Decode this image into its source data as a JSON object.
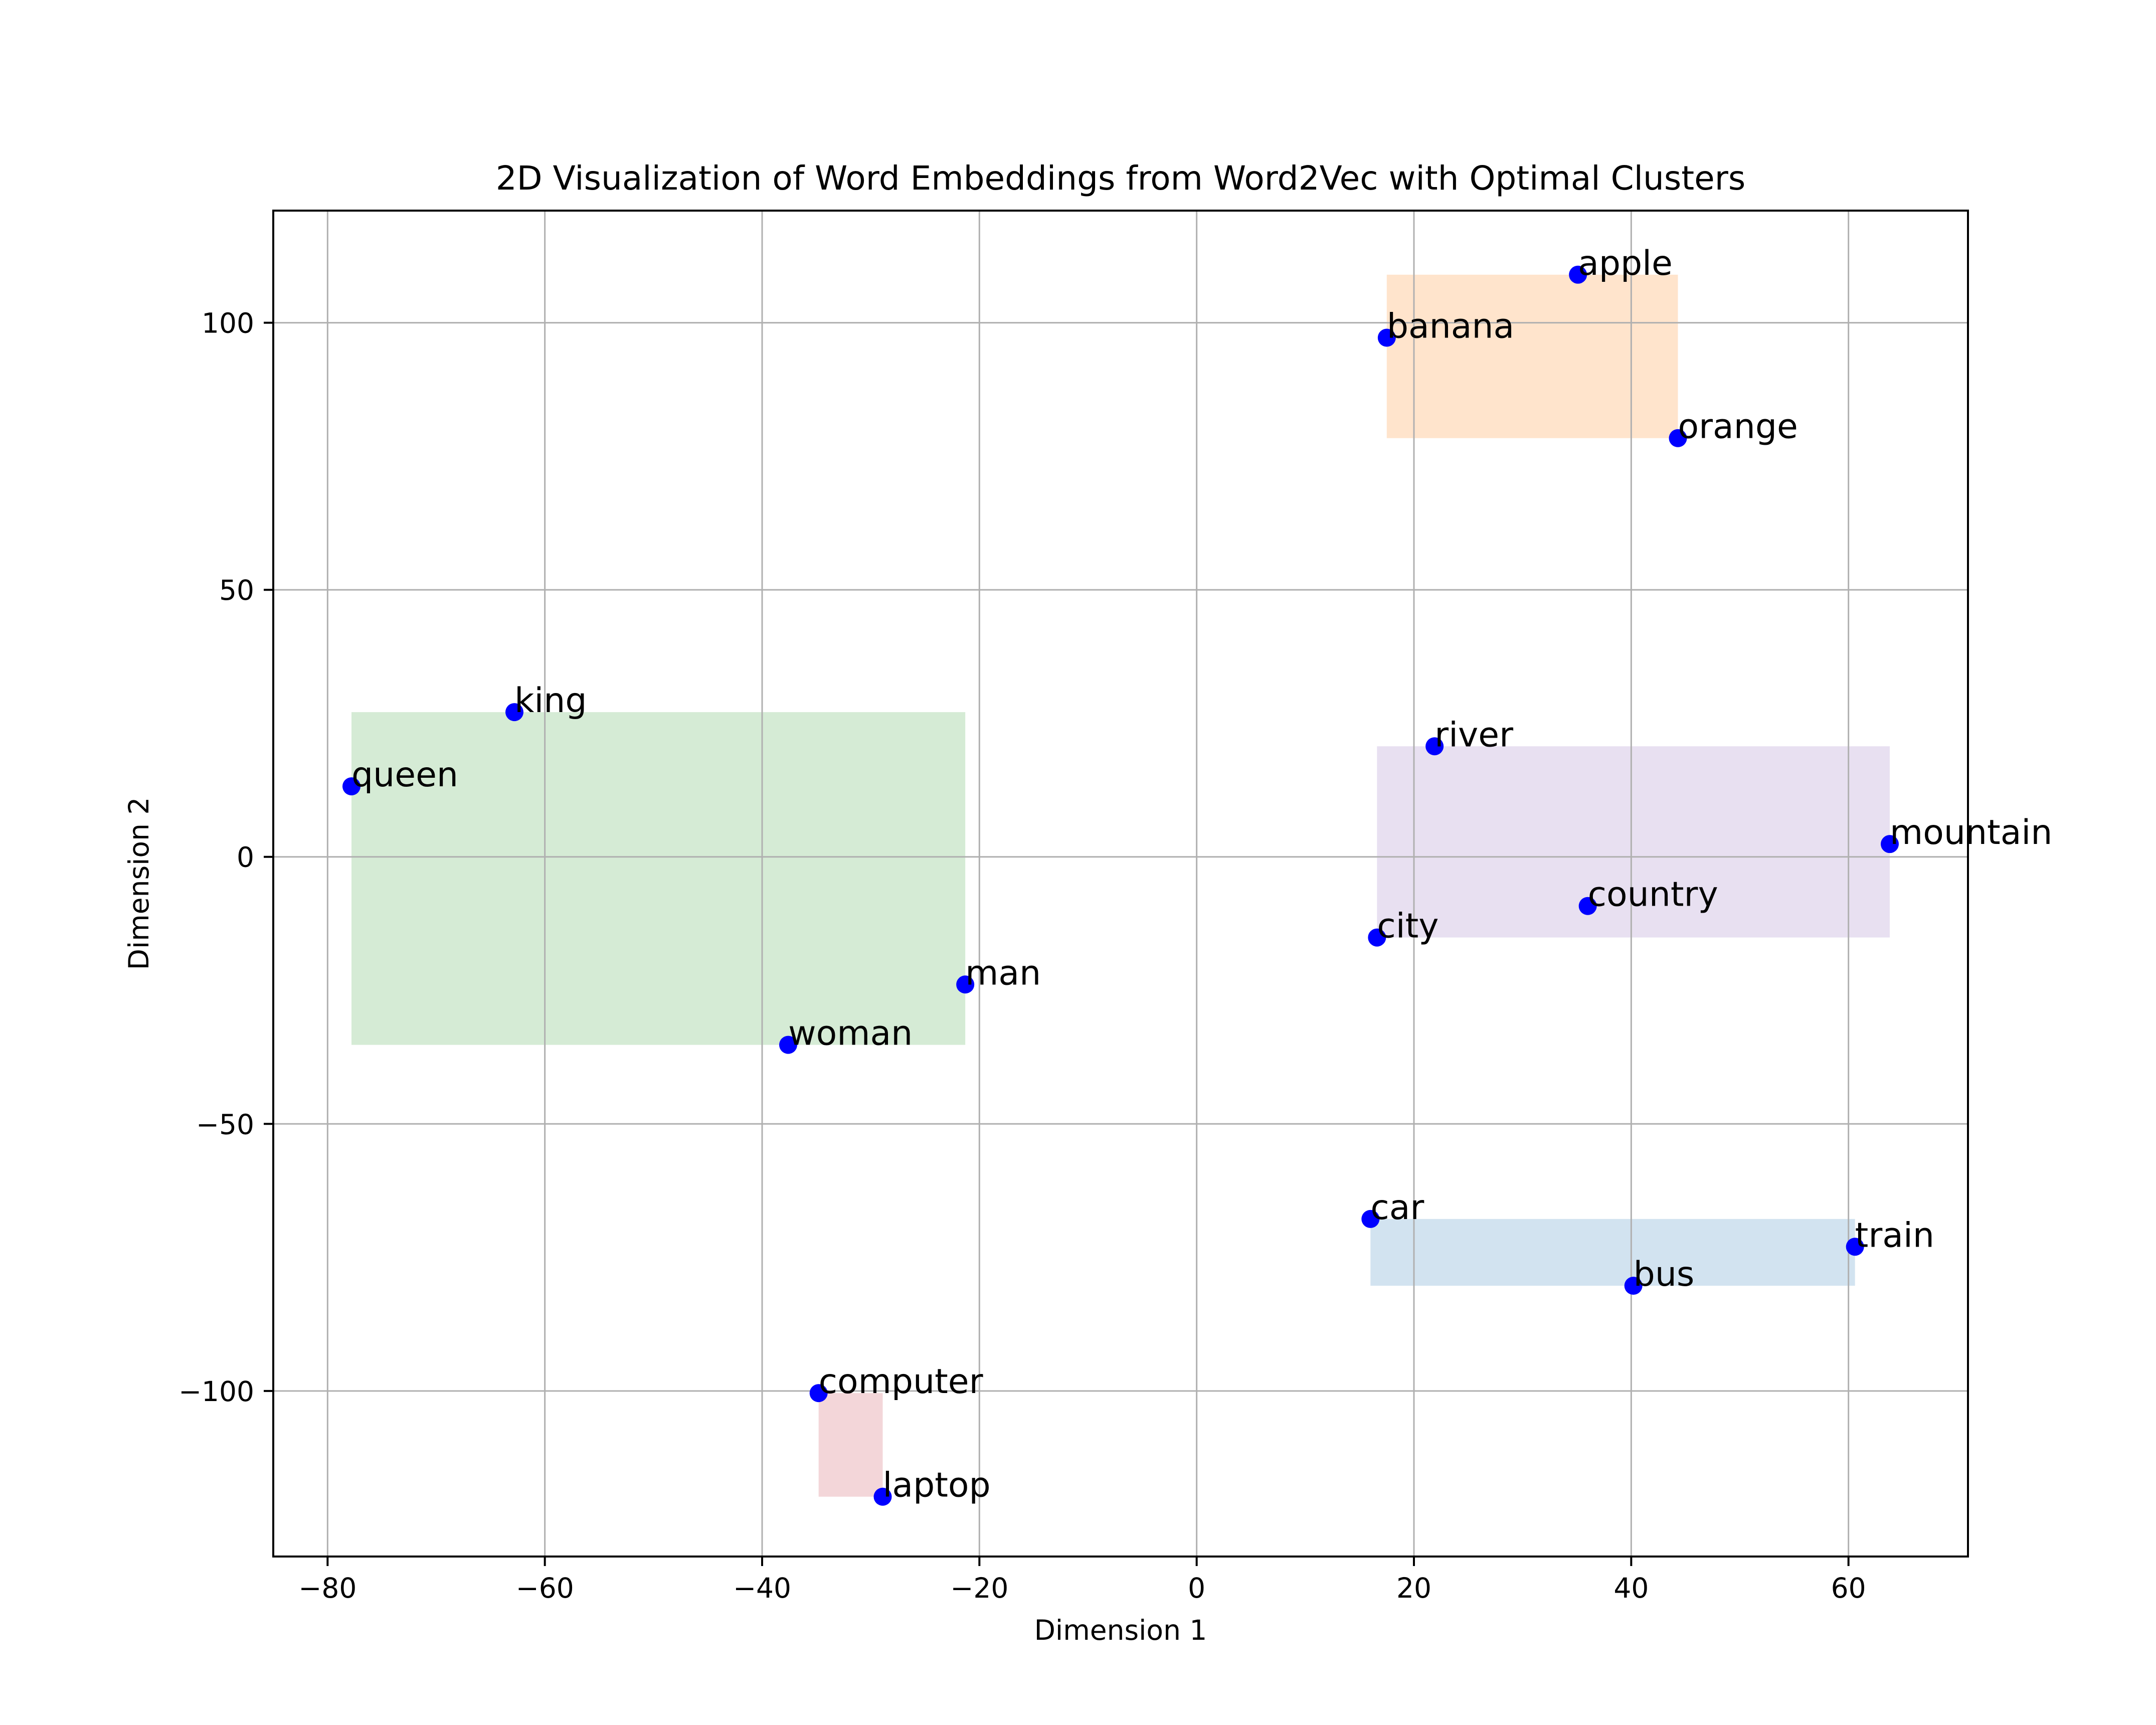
{
  "chart_data": {
    "type": "scatter",
    "title": "2D Visualization of Word Embeddings from Word2Vec with Optimal Clusters",
    "xlabel": "Dimension 1",
    "ylabel": "Dimension 2",
    "xlim": [
      -85,
      71
    ],
    "ylim": [
      -131,
      121
    ],
    "x_ticks": [
      -80,
      -60,
      -40,
      -20,
      0,
      20,
      40,
      60
    ],
    "y_ticks": [
      -100,
      -50,
      0,
      50,
      100
    ],
    "x_tick_labels": [
      "−80",
      "−60",
      "−40",
      "−20",
      "0",
      "20",
      "40",
      "60"
    ],
    "y_tick_labels": [
      "−100",
      "−50",
      "0",
      "50",
      "100"
    ],
    "grid": true,
    "marker_color": "#0000ff",
    "points": [
      {
        "label": "apple",
        "x": 35.1,
        "y": 109.0,
        "cluster": 0
      },
      {
        "label": "banana",
        "x": 17.5,
        "y": 97.2,
        "cluster": 0
      },
      {
        "label": "orange",
        "x": 44.3,
        "y": 78.4,
        "cluster": 0
      },
      {
        "label": "king",
        "x": -62.8,
        "y": 27.1,
        "cluster": 1
      },
      {
        "label": "queen",
        "x": -77.8,
        "y": 13.2,
        "cluster": 1
      },
      {
        "label": "man",
        "x": -21.3,
        "y": -23.9,
        "cluster": 1
      },
      {
        "label": "woman",
        "x": -37.6,
        "y": -35.2,
        "cluster": 1
      },
      {
        "label": "river",
        "x": 21.9,
        "y": 20.7,
        "cluster": 2
      },
      {
        "label": "mountain",
        "x": 63.8,
        "y": 2.4,
        "cluster": 2
      },
      {
        "label": "country",
        "x": 36.0,
        "y": -9.2,
        "cluster": 2
      },
      {
        "label": "city",
        "x": 16.6,
        "y": -15.1,
        "cluster": 2
      },
      {
        "label": "car",
        "x": 16.0,
        "y": -67.8,
        "cluster": 3
      },
      {
        "label": "train",
        "x": 60.6,
        "y": -73.0,
        "cluster": 3
      },
      {
        "label": "bus",
        "x": 40.2,
        "y": -80.3,
        "cluster": 3
      },
      {
        "label": "computer",
        "x": -34.8,
        "y": -100.4,
        "cluster": 4
      },
      {
        "label": "laptop",
        "x": -28.9,
        "y": -119.8,
        "cluster": 4
      }
    ],
    "clusters": [
      {
        "id": 0,
        "color": "#ffe4cc"
      },
      {
        "id": 1,
        "color": "#d5ebd5"
      },
      {
        "id": 2,
        "color": "#e8e0f1"
      },
      {
        "id": 3,
        "color": "#d2e3f0"
      },
      {
        "id": 4,
        "color": "#f3d6d9"
      }
    ]
  }
}
